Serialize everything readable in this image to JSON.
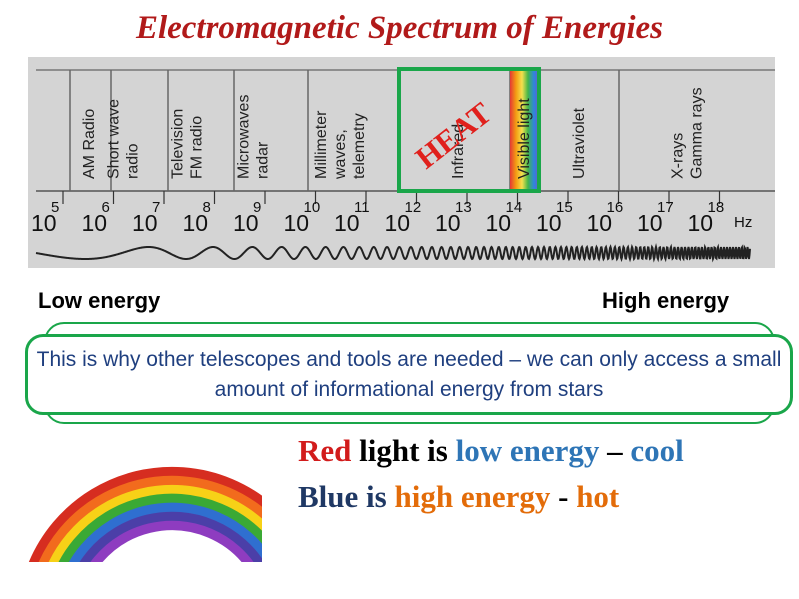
{
  "title": "Electromagnetic Spectrum of Energies",
  "spectrum": {
    "bands": [
      {
        "lines": [
          "AM Radio"
        ]
      },
      {
        "lines": [
          "Short wave",
          "radio"
        ]
      },
      {
        "lines": [
          "Television",
          "FM radio"
        ]
      },
      {
        "lines": [
          "Microwaves",
          "radar"
        ]
      },
      {
        "lines": [
          "Millimeter",
          "waves,",
          "telemetry"
        ]
      },
      {
        "lines": [
          "Infrared"
        ]
      },
      {
        "lines": [
          "Visible light"
        ]
      },
      {
        "lines": [
          "Ultraviolet"
        ]
      },
      {
        "lines": [
          "X-rays",
          "Gamma rays"
        ]
      }
    ],
    "frequency_base": "10",
    "exponents": [
      "5",
      "6",
      "7",
      "8",
      "9",
      "10",
      "11",
      "12",
      "13",
      "14",
      "15",
      "16",
      "17",
      "18"
    ],
    "unit": "Hz",
    "heat_label": "HEAT",
    "colors": {
      "panel": "#d4d4d4",
      "heat_box": "#1aa64a",
      "heat_text": "#e0201c"
    }
  },
  "labels": {
    "low_energy": "Low energy",
    "high_energy": "High energy"
  },
  "callout": "This is why other telescopes and tools are needed – we can only access a small amount of informational energy from stars",
  "statements": {
    "line1": {
      "red": "Red",
      "light_is": "light is",
      "low_energy": "low energy",
      "dash": "–",
      "cool": "cool"
    },
    "line2": {
      "blue": "Blue",
      "is": "is",
      "high_energy": "high energy",
      "dash": "-",
      "hot": "hot"
    }
  },
  "colors": {
    "title": "#b11a1a",
    "red": "#d21c1c",
    "blue_text": "#1f3864",
    "low_energy": "#2e75b6",
    "orange": "#e36c09",
    "callout_border": "#1aa64a"
  }
}
